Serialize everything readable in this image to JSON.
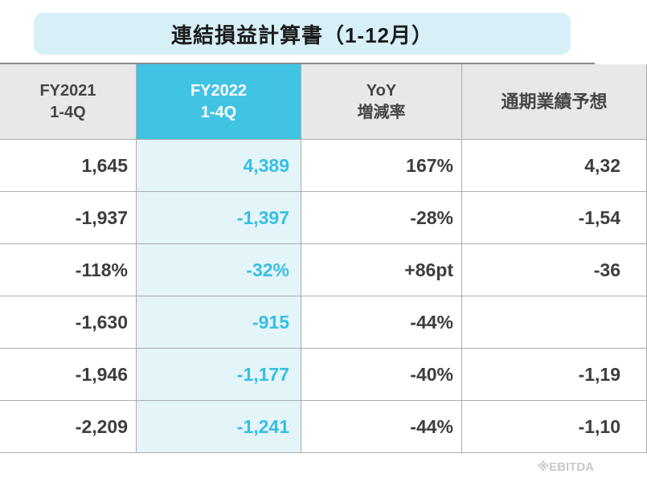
{
  "title": "連結損益計算書（1-12月）",
  "table": {
    "header": {
      "fy2021": {
        "line1": "FY2021",
        "line2": "1-4Q"
      },
      "fy2022": {
        "line1": "FY2022",
        "line2": "1-4Q"
      },
      "yoy": {
        "line1": "YoY",
        "line2": "増減率"
      },
      "forecast": {
        "line1": "通期業績予想",
        "line2": ""
      }
    },
    "rows": [
      {
        "fy2021": "1,645",
        "fy2022": "4,389",
        "yoy": "167%",
        "forecast": "4,32"
      },
      {
        "fy2021": "-1,937",
        "fy2022": "-1,397",
        "yoy": "-28%",
        "forecast": "-1,54"
      },
      {
        "fy2021": "-118%",
        "fy2022": "-32%",
        "yoy": "+86pt",
        "forecast": "-36"
      },
      {
        "fy2021": "-1,630",
        "fy2022": "-915",
        "yoy": "-44%",
        "forecast": ""
      },
      {
        "fy2021": "-1,946",
        "fy2022": "-1,177",
        "yoy": "-40%",
        "forecast": "-1,19"
      },
      {
        "fy2021": "-2,209",
        "fy2022": "-1,241",
        "yoy": "-44%",
        "forecast": "-1,10"
      }
    ]
  },
  "footnote": "※EBITDA",
  "colors": {
    "banner_bg": "#D7F0F8",
    "header_bg": "#E8E8E8",
    "accent_cyan": "#41C3E4",
    "accent_cyan_text": "#35BFE4",
    "highlight_cell_bg": "#E4F5FA",
    "text_dark": "#3D3D3D",
    "border": "#ABABAB"
  },
  "chart_data": {
    "type": "table",
    "title": "連結損益計算書（1-12月）",
    "columns": [
      "FY2021 1-4Q",
      "FY2022 1-4Q",
      "YoY 増減率",
      "通期業績予想"
    ],
    "rows": [
      [
        "1,645",
        "4,389",
        "167%",
        "4,32"
      ],
      [
        "-1,937",
        "-1,397",
        "-28%",
        "-1,54"
      ],
      [
        "-118%",
        "-32%",
        "+86pt",
        "-36"
      ],
      [
        "-1,630",
        "-915",
        "-44%",
        ""
      ],
      [
        "-1,946",
        "-1,177",
        "-40%",
        "-1,19"
      ],
      [
        "-2,209",
        "-1,241",
        "-44%",
        "-1,10"
      ]
    ],
    "note": "※EBITDA"
  }
}
